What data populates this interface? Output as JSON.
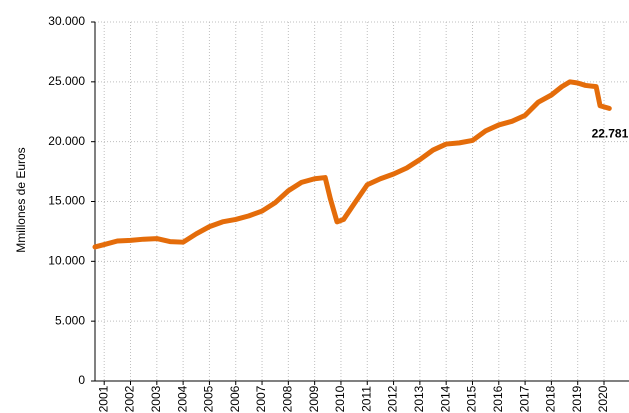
{
  "chart_data": {
    "type": "line",
    "y_label": "Mmillones de Euros",
    "x": [
      2000.65,
      2001.0,
      2001.5,
      2002.0,
      2002.5,
      2003.0,
      2003.5,
      2004.0,
      2004.5,
      2005.0,
      2005.5,
      2006.0,
      2006.5,
      2007.0,
      2007.5,
      2008.0,
      2008.5,
      2009.0,
      2009.4,
      2009.6,
      2009.85,
      2010.1,
      2010.5,
      2011.0,
      2011.5,
      2012.0,
      2012.5,
      2013.0,
      2013.5,
      2014.0,
      2014.5,
      2015.0,
      2015.5,
      2016.0,
      2016.5,
      2017.0,
      2017.5,
      2018.0,
      2018.4,
      2018.7,
      2019.0,
      2019.3,
      2019.7,
      2019.85,
      2020.2
    ],
    "series": [
      {
        "name": "Mmillones de Euros",
        "color": "#e46c0a",
        "values": [
          11200,
          11400,
          11700,
          11750,
          11850,
          11900,
          11650,
          11600,
          12300,
          12900,
          13300,
          13500,
          13800,
          14200,
          14900,
          15900,
          16600,
          16900,
          17000,
          15200,
          13300,
          13500,
          14800,
          16400,
          16900,
          17300,
          17800,
          18500,
          19300,
          19800,
          19900,
          20100,
          20900,
          21400,
          21700,
          22200,
          23300,
          23900,
          24600,
          25000,
          24900,
          24700,
          24600,
          23000,
          22781
        ],
        "value_labels": [
          null,
          null,
          null,
          null,
          null,
          null,
          null,
          null,
          null,
          null,
          null,
          null,
          null,
          null,
          null,
          null,
          null,
          null,
          null,
          null,
          null,
          null,
          null,
          null,
          null,
          null,
          null,
          null,
          null,
          null,
          null,
          null,
          null,
          null,
          null,
          null,
          null,
          null,
          null,
          null,
          null,
          null,
          null,
          null,
          "22.781"
        ]
      }
    ],
    "xlim": [
      2000.65,
      2020.95
    ],
    "xticks": [
      2001,
      2002,
      2003,
      2004,
      2005,
      2006,
      2007,
      2008,
      2009,
      2010,
      2011,
      2012,
      2013,
      2014,
      2015,
      2016,
      2017,
      2018,
      2019,
      2020
    ],
    "ylim": [
      0,
      30000
    ],
    "yticks": [
      0,
      {
        "value": 5000,
        "label": "5.000"
      },
      {
        "value": 10000,
        "label": "10.000"
      },
      {
        "value": 15000,
        "label": "15.000"
      },
      {
        "value": 20000,
        "label": "20.000"
      },
      {
        "value": 25000,
        "label": "25.000"
      },
      {
        "value": 30000,
        "label": "30.000"
      }
    ],
    "grid": true
  }
}
